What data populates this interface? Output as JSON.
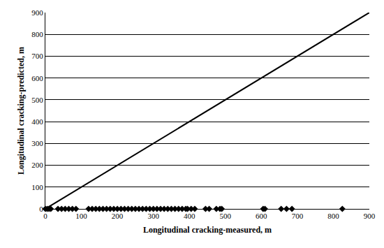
{
  "chart_data": {
    "type": "scatter",
    "x_label": "Longitudinal cracking-measured, m",
    "y_label": "Longitudinal cracking-predicted, m",
    "xlim": [
      0,
      900
    ],
    "ylim": [
      0,
      900
    ],
    "xticks": [
      0,
      100,
      200,
      300,
      400,
      500,
      600,
      700,
      800,
      900
    ],
    "yticks": [
      0,
      100,
      200,
      300,
      400,
      500,
      600,
      700,
      800,
      900
    ],
    "grid": "y",
    "series": [
      {
        "type": "scatter",
        "marker": "diamond",
        "color": "#000000",
        "x": [
          0,
          5,
          10,
          15,
          35,
          45,
          55,
          65,
          75,
          85,
          120,
          130,
          140,
          150,
          160,
          170,
          180,
          190,
          200,
          210,
          220,
          230,
          240,
          250,
          260,
          270,
          280,
          290,
          300,
          310,
          320,
          330,
          340,
          350,
          360,
          370,
          380,
          390,
          395,
          405,
          415,
          445,
          455,
          475,
          485,
          490,
          605,
          610,
          655,
          670,
          685,
          825
        ],
        "values": [
          0,
          0,
          0,
          0,
          0,
          0,
          0,
          0,
          0,
          0,
          0,
          0,
          0,
          0,
          0,
          0,
          0,
          0,
          0,
          0,
          0,
          0,
          0,
          0,
          0,
          0,
          0,
          0,
          0,
          0,
          0,
          0,
          0,
          0,
          0,
          0,
          0,
          0,
          0,
          0,
          0,
          0,
          0,
          0,
          0,
          0,
          0,
          0,
          0,
          0,
          0,
          0
        ]
      },
      {
        "type": "line",
        "line_style": "solid",
        "color": "#000000",
        "x": [
          0,
          900
        ],
        "values": [
          0,
          900
        ]
      }
    ]
  }
}
